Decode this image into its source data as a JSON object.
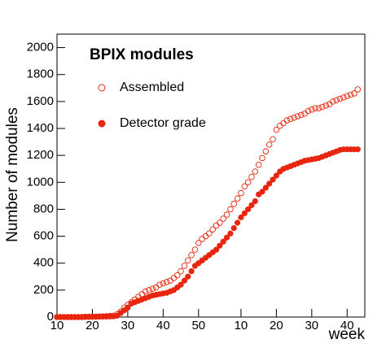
{
  "chart_data": {
    "type": "scatter",
    "title": "BPIX modules",
    "x_label": "week",
    "y_label": "Number of modules",
    "x": [
      10,
      11,
      12,
      13,
      14,
      15,
      16,
      17,
      18,
      19,
      20,
      21,
      22,
      23,
      24,
      25,
      26,
      27,
      28,
      29,
      30,
      31,
      32,
      33,
      34,
      35,
      36,
      37,
      38,
      39,
      40,
      41,
      42,
      43,
      44,
      45,
      46,
      47,
      48,
      49,
      50,
      51,
      52,
      53,
      54,
      55,
      56,
      57,
      58,
      59,
      60,
      61,
      62,
      63,
      64,
      65,
      66,
      67,
      68,
      69,
      70,
      71,
      72,
      73,
      74,
      75,
      76,
      77,
      78,
      79,
      80,
      81,
      82,
      83,
      84,
      85,
      86,
      87,
      88,
      89,
      90,
      91,
      92,
      93,
      94,
      95
    ],
    "series": [
      {
        "name": "Assembled",
        "color": "#e8250e",
        "marker": "open",
        "values": [
          0,
          0,
          0,
          0,
          0,
          0,
          0,
          0,
          2,
          2,
          3,
          3,
          4,
          5,
          6,
          8,
          10,
          20,
          40,
          70,
          90,
          110,
          130,
          150,
          170,
          190,
          200,
          210,
          220,
          240,
          250,
          260,
          270,
          290,
          310,
          340,
          380,
          420,
          460,
          500,
          550,
          580,
          600,
          620,
          650,
          680,
          700,
          730,
          760,
          800,
          840,
          880,
          920,
          970,
          1000,
          1040,
          1080,
          1130,
          1180,
          1230,
          1280,
          1320,
          1390,
          1420,
          1440,
          1460,
          1470,
          1480,
          1490,
          1500,
          1510,
          1530,
          1540,
          1550,
          1550,
          1560,
          1570,
          1580,
          1600,
          1610,
          1620,
          1630,
          1640,
          1650,
          1660,
          1690
        ]
      },
      {
        "name": "Detector grade",
        "color": "#e8250e",
        "marker": "filled",
        "values": [
          0,
          0,
          0,
          0,
          0,
          0,
          0,
          0,
          0,
          1,
          1,
          2,
          2,
          3,
          3,
          4,
          5,
          10,
          30,
          50,
          70,
          100,
          110,
          120,
          130,
          140,
          150,
          160,
          165,
          170,
          175,
          180,
          190,
          200,
          220,
          240,
          270,
          300,
          340,
          380,
          400,
          420,
          440,
          460,
          480,
          500,
          530,
          560,
          590,
          620,
          660,
          700,
          740,
          770,
          800,
          830,
          860,
          910,
          930,
          960,
          990,
          1020,
          1050,
          1080,
          1100,
          1110,
          1120,
          1130,
          1140,
          1150,
          1160,
          1165,
          1170,
          1175,
          1180,
          1190,
          1200,
          1210,
          1220,
          1230,
          1240,
          1245,
          1245,
          1245,
          1245,
          1245
        ]
      }
    ],
    "xlim": [
      10,
      97
    ],
    "xticks": [
      10,
      20,
      30,
      40,
      50,
      {
        "value": 62,
        "label": "10"
      },
      {
        "value": 72,
        "label": "20"
      },
      {
        "value": 82,
        "label": "30"
      },
      {
        "value": 92,
        "label": "40"
      }
    ],
    "ylim": [
      0,
      2100
    ],
    "yticks": [
      0,
      200,
      400,
      600,
      800,
      1000,
      1200,
      1400,
      1600,
      1800,
      2000
    ]
  }
}
